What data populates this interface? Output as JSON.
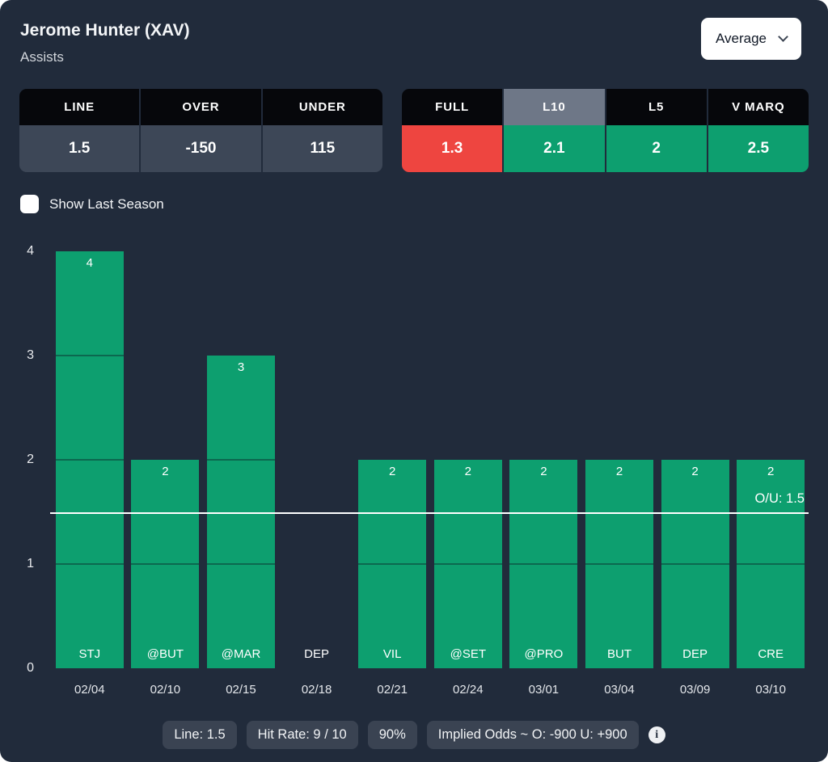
{
  "header": {
    "player": "Jerome Hunter (XAV)",
    "stat": "Assists",
    "average_dropdown": "Average"
  },
  "odds_table": {
    "headers": [
      "LINE",
      "OVER",
      "UNDER"
    ],
    "values": [
      "1.5",
      "-150",
      "115"
    ]
  },
  "splits_table": {
    "headers": [
      "FULL",
      "L10",
      "L5",
      "V MARQ"
    ],
    "selected": "L10",
    "values": [
      "1.3",
      "2.1",
      "2",
      "2.5"
    ],
    "statuses": [
      "under",
      "over",
      "over",
      "over"
    ]
  },
  "show_last_season": {
    "label": "Show Last Season",
    "checked": false
  },
  "chart_data": {
    "type": "bar",
    "categories": [
      "STJ",
      "@BUT",
      "@MAR",
      "DEP",
      "VIL",
      "@SET",
      "@PRO",
      "BUT",
      "DEP",
      "CRE"
    ],
    "dates": [
      "02/04",
      "02/10",
      "02/15",
      "02/18",
      "02/21",
      "02/24",
      "03/01",
      "03/04",
      "03/09",
      "03/10"
    ],
    "values": [
      4,
      2,
      3,
      0,
      2,
      2,
      2,
      2,
      2,
      2
    ],
    "title": "",
    "xlabel": "",
    "ylabel": "",
    "ylim": [
      0,
      4
    ],
    "yticks": [
      4,
      3,
      2,
      1,
      0
    ],
    "grid": "off",
    "legend": "none",
    "bar_color": "#0d9f6f",
    "reference_line": {
      "value": 1.5,
      "label": "O/U: 1.5"
    }
  },
  "footer": {
    "pills": [
      "Line: 1.5",
      "Hit Rate: 9 / 10",
      "90%",
      "Implied Odds ~ O: -900 U: +900"
    ]
  },
  "colors": {
    "background": "#212b3b",
    "header_black": "#06070b",
    "row_gray": "#3d4757",
    "selected_gray": "#6e7787",
    "green": "#0d9f6f",
    "red": "#ee4540",
    "over_text": "#12a873",
    "under_text": "#ef4444"
  }
}
